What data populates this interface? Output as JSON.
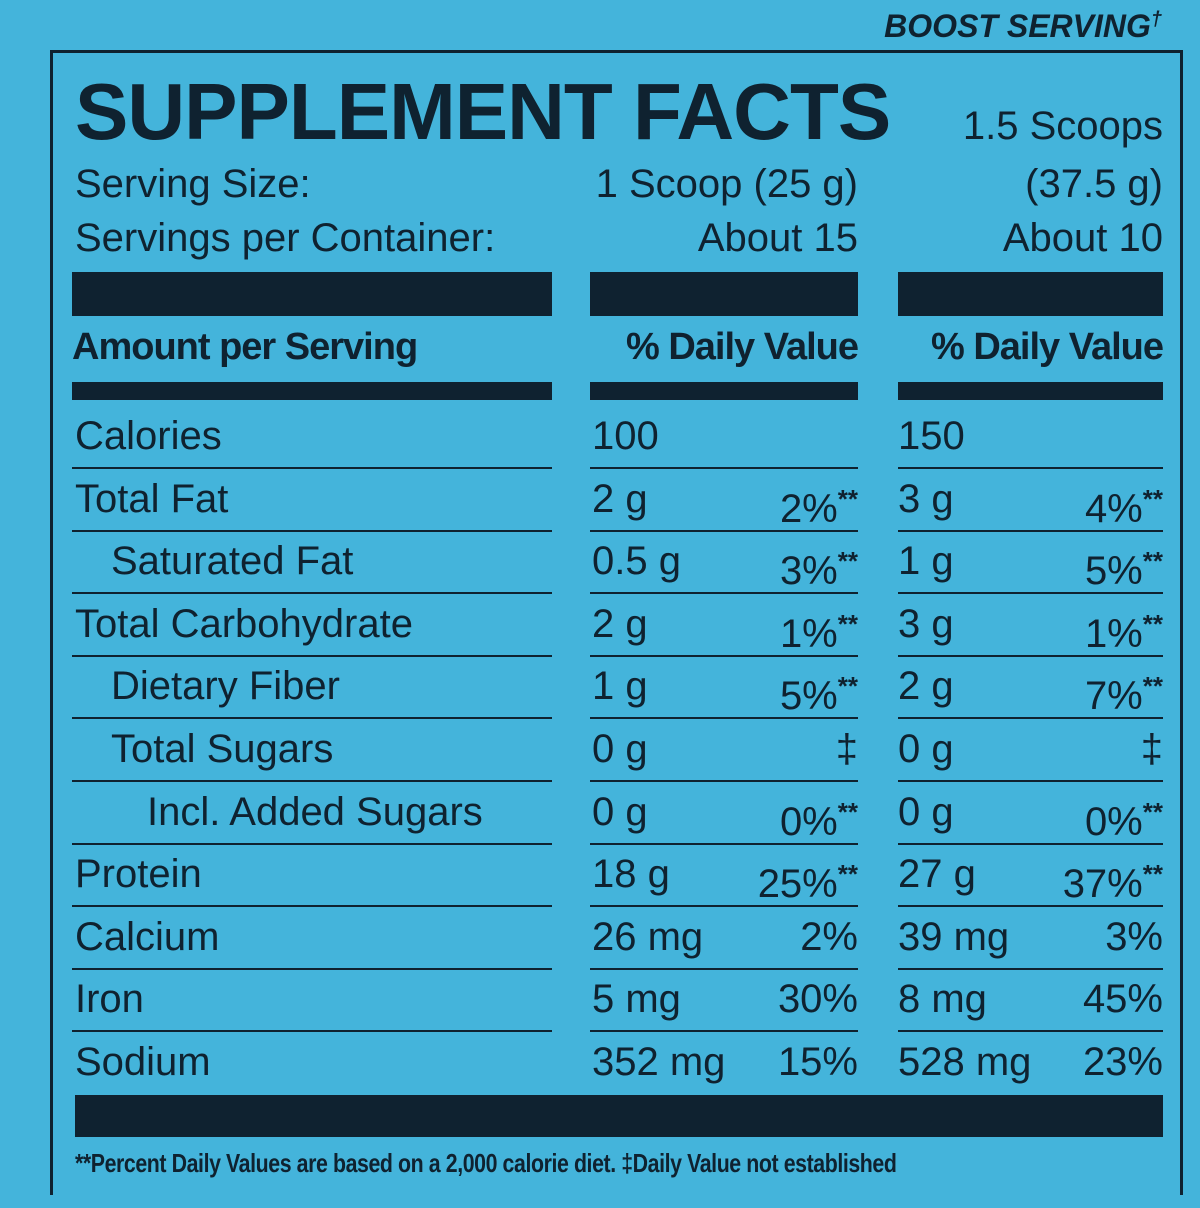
{
  "header": {
    "boost_label": "BOOST SERVING",
    "boost_mark": "†",
    "title": "SUPPLEMENT FACTS",
    "boost_size_1": "1.5 Scoops",
    "boost_size_2": "(37.5 g)",
    "serving_size_label": "Serving Size:",
    "serving_size": "1 Scoop (25 g)",
    "servings_label": "Servings per Container:",
    "servings": "About 15",
    "boost_servings": "About 10",
    "amount_label": "Amount per Serving",
    "dv_label": "% Daily Value",
    "boost_dv_label": "% Daily Value"
  },
  "table": {
    "rows": [
      {
        "name": "Calories",
        "amount": "100",
        "boost_amount": "150"
      },
      {
        "name": "Total Fat",
        "amount": "2 g",
        "dv": "2%",
        "dv_note": "**",
        "boost_amount": "3 g",
        "boost_dv": "4%",
        "boost_dv_note": "**"
      },
      {
        "name": "Saturated Fat",
        "amount": "0.5 g",
        "dv": "3%",
        "dv_note": "**",
        "boost_amount": "1 g",
        "boost_dv": "5%",
        "boost_dv_note": "**"
      },
      {
        "name": "Total Carbohydrate",
        "amount": "2 g",
        "dv": "1%",
        "dv_note": "**",
        "boost_amount": "3 g",
        "boost_dv": "1%",
        "boost_dv_note": "**"
      },
      {
        "name": "Dietary Fiber",
        "amount": "1 g",
        "dv": "5%",
        "dv_note": "**",
        "boost_amount": "2 g",
        "boost_dv": "7%",
        "boost_dv_note": "**"
      },
      {
        "name": "Total Sugars",
        "amount": "0 g",
        "dv": "‡",
        "boost_amount": "0 g",
        "boost_dv": "‡"
      },
      {
        "name": "Incl. Added Sugars",
        "amount": "0 g",
        "dv": "0%",
        "dv_note": "**",
        "boost_amount": "0 g",
        "boost_dv": "0%",
        "boost_dv_note": "**"
      },
      {
        "name": "Protein",
        "amount": "18 g",
        "dv": "25%",
        "dv_note": "**",
        "boost_amount": "27 g",
        "boost_dv": "37%",
        "boost_dv_note": "**"
      },
      {
        "name": "Calcium",
        "amount": "26 mg",
        "dv": "2%",
        "boost_amount": "39 mg",
        "boost_dv": "3%"
      },
      {
        "name": "Iron",
        "amount": "5 mg",
        "dv": "30%",
        "boost_amount": "8 mg",
        "boost_dv": "45%"
      },
      {
        "name": "Sodium",
        "amount": "352 mg",
        "dv": "15%",
        "boost_amount": "528 mg",
        "boost_dv": "23%"
      }
    ]
  },
  "footer": {
    "note": "**Percent Daily Values are based on a 2,000 calorie diet. ‡Daily Value not established"
  }
}
